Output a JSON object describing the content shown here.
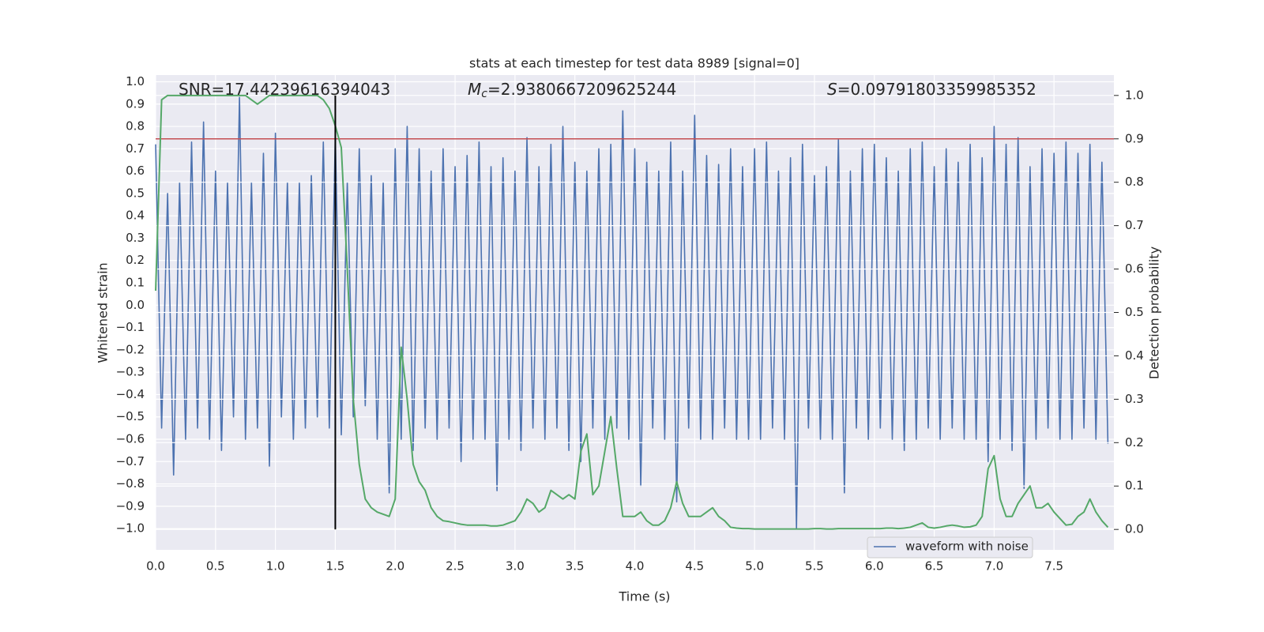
{
  "chart_data": {
    "type": "line",
    "title": "stats at each timestep for test data 8989 [signal=0]",
    "xlabel": "Time (s)",
    "ylabel": "Whitened strain",
    "y2label": "Detection probability",
    "annotations": [
      {
        "text": "SNR=17.44239616394043"
      },
      {
        "symbol": "M",
        "subscript": "c",
        "text": "=2.9380667209625244"
      },
      {
        "symbol": "S",
        "text": "=0.09791803359985352"
      }
    ],
    "x": [
      0,
      0.05,
      0.1,
      0.15,
      0.2,
      0.25,
      0.3,
      0.35,
      0.4,
      0.45,
      0.5,
      0.55,
      0.6,
      0.65,
      0.7,
      0.75,
      0.8,
      0.85,
      0.9,
      0.95,
      1,
      1.05,
      1.1,
      1.15,
      1.2,
      1.25,
      1.3,
      1.35,
      1.4,
      1.45,
      1.5,
      1.55,
      1.6,
      1.65,
      1.7,
      1.75,
      1.8,
      1.85,
      1.9,
      1.95,
      2,
      2.05,
      2.1,
      2.15,
      2.2,
      2.25,
      2.3,
      2.35,
      2.4,
      2.45,
      2.5,
      2.55,
      2.6,
      2.65,
      2.7,
      2.75,
      2.8,
      2.85,
      2.9,
      2.95,
      3,
      3.05,
      3.1,
      3.15,
      3.2,
      3.25,
      3.3,
      3.35,
      3.4,
      3.45,
      3.5,
      3.55,
      3.6,
      3.65,
      3.7,
      3.75,
      3.8,
      3.85,
      3.9,
      3.95,
      4,
      4.05,
      4.1,
      4.15,
      4.2,
      4.25,
      4.3,
      4.35,
      4.4,
      4.45,
      4.5,
      4.55,
      4.6,
      4.65,
      4.7,
      4.75,
      4.8,
      4.85,
      4.9,
      4.95,
      5,
      5.05,
      5.1,
      5.15,
      5.2,
      5.25,
      5.3,
      5.35,
      5.4,
      5.45,
      5.5,
      5.55,
      5.6,
      5.65,
      5.7,
      5.75,
      5.8,
      5.85,
      5.9,
      5.95,
      6,
      6.05,
      6.1,
      6.15,
      6.2,
      6.25,
      6.3,
      6.35,
      6.4,
      6.45,
      6.5,
      6.55,
      6.6,
      6.65,
      6.7,
      6.75,
      6.8,
      6.85,
      6.9,
      6.95,
      7,
      7.05,
      7.1,
      7.15,
      7.2,
      7.25,
      7.3,
      7.35,
      7.4,
      7.45,
      7.5,
      7.55,
      7.6,
      7.65,
      7.7,
      7.75,
      7.8,
      7.85,
      7.9,
      7.95
    ],
    "series": [
      {
        "name": "waveform with noise",
        "color": "#4c72b0",
        "axis": "y",
        "values": [
          0.72,
          -0.55,
          0.5,
          -0.76,
          0.55,
          -0.6,
          0.73,
          -0.55,
          0.82,
          -0.6,
          0.6,
          -0.65,
          0.55,
          -0.5,
          0.93,
          -0.6,
          0.55,
          -0.55,
          0.68,
          -0.72,
          0.77,
          -0.5,
          0.55,
          -0.6,
          0.55,
          -0.55,
          0.58,
          -0.5,
          0.73,
          -0.55,
          0.76,
          -0.58,
          0.55,
          -0.5,
          0.7,
          -0.45,
          0.58,
          -0.6,
          0.55,
          -0.84,
          0.7,
          -0.6,
          0.8,
          -0.65,
          0.7,
          -0.55,
          0.6,
          -0.6,
          0.7,
          -0.55,
          0.62,
          -0.7,
          0.67,
          -0.6,
          0.73,
          -0.6,
          0.62,
          -0.83,
          0.66,
          -0.6,
          0.6,
          -0.65,
          0.75,
          -0.55,
          0.62,
          -0.6,
          0.72,
          -0.55,
          0.8,
          -0.65,
          0.64,
          -0.7,
          0.6,
          -0.55,
          0.7,
          -0.6,
          0.72,
          -0.55,
          0.87,
          -0.6,
          0.7,
          -0.81,
          0.64,
          -0.55,
          0.6,
          -0.6,
          0.73,
          -0.88,
          0.6,
          -0.55,
          0.85,
          -0.6,
          0.67,
          -0.6,
          0.63,
          -0.55,
          0.7,
          -0.6,
          0.62,
          -0.6,
          0.7,
          -0.6,
          0.73,
          -0.55,
          0.6,
          -0.6,
          0.66,
          -1.0,
          0.72,
          -0.55,
          0.58,
          -0.6,
          0.62,
          -0.6,
          0.74,
          -0.84,
          0.6,
          -0.55,
          0.7,
          -0.6,
          0.72,
          -0.55,
          0.66,
          -0.6,
          0.6,
          -0.65,
          0.7,
          -0.6,
          0.73,
          -0.55,
          0.62,
          -0.6,
          0.7,
          -0.55,
          0.64,
          -0.6,
          0.72,
          -0.6,
          0.66,
          -0.7,
          0.8,
          -0.6,
          0.72,
          -0.65,
          0.75,
          -0.82,
          0.62,
          -0.6,
          0.7,
          -0.55,
          0.68,
          -0.6,
          0.73,
          -0.6,
          0.68,
          -0.55,
          0.72,
          -0.6,
          0.64,
          -0.62
        ]
      },
      {
        "color": "#55a868",
        "axis": "y2",
        "values": [
          0.55,
          0.99,
          1.0,
          1.0,
          1.0,
          1.0,
          1.0,
          1.0,
          1.0,
          1.0,
          1.0,
          1.0,
          1.0,
          1.0,
          1.0,
          1.0,
          0.99,
          0.98,
          0.99,
          1.0,
          1.0,
          1.0,
          1.0,
          1.0,
          1.0,
          1.0,
          1.0,
          1.0,
          0.99,
          0.97,
          0.93,
          0.88,
          0.6,
          0.3,
          0.15,
          0.07,
          0.05,
          0.04,
          0.035,
          0.03,
          0.07,
          0.42,
          0.3,
          0.15,
          0.11,
          0.09,
          0.05,
          0.03,
          0.02,
          0.018,
          0.015,
          0.012,
          0.01,
          0.01,
          0.01,
          0.01,
          0.008,
          0.008,
          0.01,
          0.015,
          0.02,
          0.04,
          0.07,
          0.06,
          0.04,
          0.05,
          0.09,
          0.08,
          0.07,
          0.08,
          0.07,
          0.18,
          0.22,
          0.08,
          0.1,
          0.18,
          0.26,
          0.14,
          0.03,
          0.03,
          0.03,
          0.04,
          0.02,
          0.01,
          0.01,
          0.02,
          0.05,
          0.11,
          0.06,
          0.03,
          0.03,
          0.03,
          0.04,
          0.05,
          0.03,
          0.02,
          0.005,
          0.003,
          0.002,
          0.002,
          0.001,
          0.001,
          0.001,
          0.001,
          0.001,
          0.001,
          0.001,
          0.001,
          0.001,
          0.001,
          0.002,
          0.002,
          0.001,
          0.001,
          0.002,
          0.002,
          0.002,
          0.002,
          0.002,
          0.002,
          0.002,
          0.002,
          0.003,
          0.003,
          0.002,
          0.003,
          0.005,
          0.01,
          0.015,
          0.005,
          0.003,
          0.005,
          0.008,
          0.01,
          0.008,
          0.005,
          0.006,
          0.01,
          0.03,
          0.14,
          0.17,
          0.07,
          0.03,
          0.03,
          0.06,
          0.08,
          0.1,
          0.05,
          0.05,
          0.06,
          0.04,
          0.025,
          0.01,
          0.012,
          0.03,
          0.04,
          0.07,
          0.04,
          0.02,
          0.005
        ]
      }
    ],
    "hline": {
      "value": 0.9,
      "axis": "y2",
      "color": "#c44e52"
    },
    "vline": {
      "x": 1.5,
      "ymin": 0,
      "ymax": 1,
      "axis": "y2",
      "color": "#000000"
    },
    "xlim": [
      0,
      8
    ],
    "ylim": [
      -1.095,
      1.03
    ],
    "y2lim": [
      -0.047,
      1.047
    ],
    "xticks": [
      {
        "value": 0,
        "label": "0.0"
      },
      {
        "value": 0.5,
        "label": "0.5"
      },
      {
        "value": 1,
        "label": "1.0"
      },
      {
        "value": 1.5,
        "label": "1.5"
      },
      {
        "value": 2,
        "label": "2.0"
      },
      {
        "value": 2.5,
        "label": "2.5"
      },
      {
        "value": 3,
        "label": "3.0"
      },
      {
        "value": 3.5,
        "label": "3.5"
      },
      {
        "value": 4,
        "label": "4.0"
      },
      {
        "value": 4.5,
        "label": "4.5"
      },
      {
        "value": 5,
        "label": "5.0"
      },
      {
        "value": 5.5,
        "label": "5.5"
      },
      {
        "value": 6,
        "label": "6.0"
      },
      {
        "value": 6.5,
        "label": "6.5"
      },
      {
        "value": 7,
        "label": "7.0"
      },
      {
        "value": 7.5,
        "label": "7.5"
      }
    ],
    "yticks": [
      {
        "value": 1,
        "label": "1.0"
      },
      {
        "value": 0.9,
        "label": "0.9"
      },
      {
        "value": 0.8,
        "label": "0.8"
      },
      {
        "value": 0.7,
        "label": "0.7"
      },
      {
        "value": 0.6,
        "label": "0.6"
      },
      {
        "value": 0.5,
        "label": "0.5"
      },
      {
        "value": 0.4,
        "label": "0.4"
      },
      {
        "value": 0.3,
        "label": "0.3"
      },
      {
        "value": 0.2,
        "label": "0.2"
      },
      {
        "value": 0.1,
        "label": "0.1"
      },
      {
        "value": 0,
        "label": "0.0"
      },
      {
        "value": -0.1,
        "label": "−0.1"
      },
      {
        "value": -0.2,
        "label": "−0.2"
      },
      {
        "value": -0.3,
        "label": "−0.3"
      },
      {
        "value": -0.4,
        "label": "−0.4"
      },
      {
        "value": -0.5,
        "label": "−0.5"
      },
      {
        "value": -0.6,
        "label": "−0.6"
      },
      {
        "value": -0.7,
        "label": "−0.7"
      },
      {
        "value": -0.8,
        "label": "−0.8"
      },
      {
        "value": -0.9,
        "label": "−0.9"
      },
      {
        "value": -1,
        "label": "−1.0"
      }
    ],
    "y2ticks": [
      {
        "value": 0,
        "label": "0.0"
      },
      {
        "value": 0.1,
        "label": "0.1"
      },
      {
        "value": 0.2,
        "label": "0.2"
      },
      {
        "value": 0.3,
        "label": "0.3"
      },
      {
        "value": 0.4,
        "label": "0.4"
      },
      {
        "value": 0.5,
        "label": "0.5"
      },
      {
        "value": 0.6,
        "label": "0.6"
      },
      {
        "value": 0.7,
        "label": "0.7"
      },
      {
        "value": 0.8,
        "label": "0.8"
      },
      {
        "value": 0.9,
        "label": "0.9"
      },
      {
        "value": 1,
        "label": "1.0"
      }
    ],
    "grid": true,
    "legend": "lower right"
  }
}
